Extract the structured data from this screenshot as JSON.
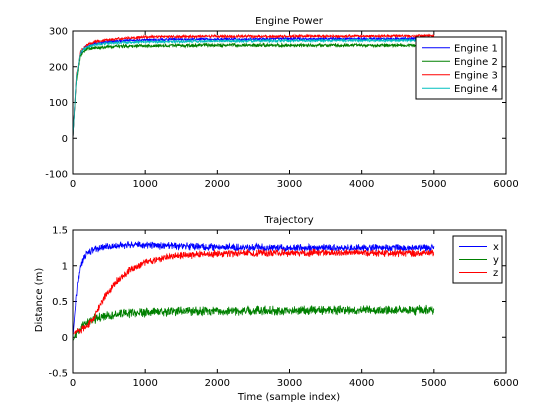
{
  "chart_data": [
    {
      "type": "line",
      "title": "Engine Power",
      "xlabel": "",
      "ylabel": "",
      "xlim": [
        0,
        6000
      ],
      "ylim": [
        -100,
        300
      ],
      "xticks": [
        0,
        1000,
        2000,
        3000,
        4000,
        5000,
        6000
      ],
      "yticks": [
        -100,
        0,
        100,
        200,
        300
      ],
      "grid": false,
      "legend_position": "top-right",
      "noisy": true,
      "x_sample_range": [
        0,
        5000
      ],
      "series": [
        {
          "name": "Engine 1",
          "color": "#0000ff",
          "x": [
            0,
            50,
            100,
            150,
            200,
            300,
            500,
            800,
            1200,
            2000,
            3000,
            4000,
            5000
          ],
          "y": [
            0,
            170,
            235,
            252,
            258,
            265,
            270,
            274,
            276,
            277,
            278,
            278,
            279
          ],
          "noise": 3
        },
        {
          "name": "Engine 2",
          "color": "#008000",
          "x": [
            0,
            50,
            100,
            150,
            200,
            300,
            500,
            800,
            1200,
            2000,
            3000,
            4000,
            5000
          ],
          "y": [
            0,
            160,
            230,
            245,
            250,
            253,
            256,
            258,
            259,
            260,
            260,
            260,
            260
          ],
          "noise": 4
        },
        {
          "name": "Engine 3",
          "color": "#ff0000",
          "x": [
            0,
            50,
            100,
            150,
            200,
            300,
            500,
            800,
            1200,
            2000,
            3000,
            4000,
            5000
          ],
          "y": [
            0,
            175,
            240,
            255,
            262,
            270,
            276,
            281,
            284,
            285,
            285,
            286,
            286
          ],
          "noise": 3
        },
        {
          "name": "Engine 4",
          "color": "#00bfbf",
          "x": [
            0,
            50,
            100,
            150,
            200,
            300,
            500,
            800,
            1200,
            2000,
            3000,
            4000,
            5000
          ],
          "y": [
            0,
            172,
            238,
            250,
            256,
            262,
            266,
            268,
            270,
            272,
            273,
            274,
            274
          ],
          "noise": 3
        }
      ]
    },
    {
      "type": "line",
      "title": "Trajectory",
      "xlabel": "Time (sample index)",
      "ylabel": "Distance (m)",
      "xlim": [
        0,
        6000
      ],
      "ylim": [
        -0.5,
        1.5
      ],
      "xticks": [
        0,
        1000,
        2000,
        3000,
        4000,
        5000,
        6000
      ],
      "yticks": [
        -0.5,
        0,
        0.5,
        1,
        1.5
      ],
      "grid": false,
      "legend_position": "top-right",
      "noisy": true,
      "x_sample_range": [
        0,
        5000
      ],
      "series": [
        {
          "name": "x",
          "color": "#0000ff",
          "x": [
            0,
            50,
            100,
            150,
            200,
            300,
            500,
            800,
            1200,
            2000,
            3000,
            4000,
            5000
          ],
          "y": [
            0,
            0.6,
            1.0,
            1.12,
            1.18,
            1.23,
            1.27,
            1.3,
            1.28,
            1.26,
            1.25,
            1.25,
            1.25
          ],
          "noise": 0.04
        },
        {
          "name": "y",
          "color": "#008000",
          "x": [
            0,
            50,
            100,
            200,
            300,
            500,
            800,
            1200,
            2000,
            3000,
            4000,
            5000
          ],
          "y": [
            -0.05,
            0.05,
            0.12,
            0.2,
            0.26,
            0.31,
            0.34,
            0.36,
            0.37,
            0.37,
            0.38,
            0.38
          ],
          "noise": 0.05
        },
        {
          "name": "z",
          "color": "#ff0000",
          "x": [
            0,
            100,
            200,
            300,
            400,
            600,
            800,
            1000,
            1300,
            1600,
            2000,
            3000,
            4000,
            5000
          ],
          "y": [
            0.05,
            0.1,
            0.16,
            0.3,
            0.5,
            0.78,
            0.95,
            1.05,
            1.12,
            1.15,
            1.17,
            1.18,
            1.18,
            1.18
          ],
          "noise": 0.04
        }
      ]
    }
  ]
}
